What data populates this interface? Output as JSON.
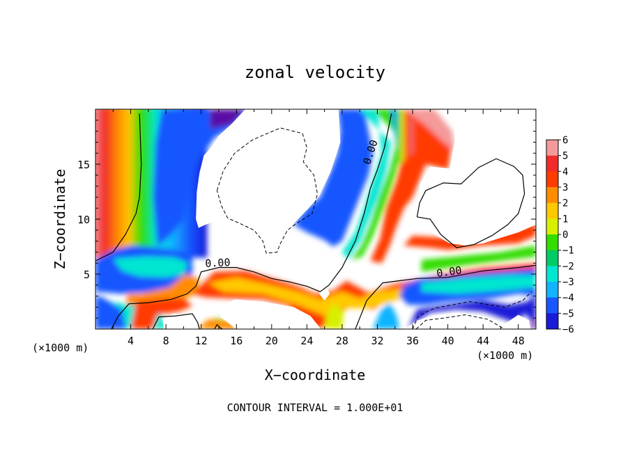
{
  "chart_data": {
    "type": "heatmap",
    "title": "zonal velocity",
    "xlabel": "X−coordinate",
    "ylabel": "Z−coordinate",
    "x_unit_left": "(×1000 m)",
    "x_unit_right": "(×1000 m)",
    "footer": "CONTOUR INTERVAL = 1.000E+01",
    "xlim": [
      0,
      50
    ],
    "ylim": [
      0,
      20
    ],
    "x_ticks": [
      4,
      8,
      12,
      16,
      20,
      24,
      28,
      32,
      36,
      40,
      44,
      48
    ],
    "y_ticks": [
      5,
      10,
      15
    ],
    "colorbar": {
      "levels": [
        6,
        5,
        4,
        3,
        2,
        1,
        0,
        -1,
        -2,
        -3,
        -4,
        -5,
        -6
      ],
      "tick_labels": [
        "6",
        "5",
        "4",
        "3",
        "2",
        "1",
        "0",
        "−1",
        "−2",
        "−3",
        "−4",
        "−5",
        "−6"
      ],
      "colors": [
        "#f49a9a",
        "#f22a2a",
        "#ff3b00",
        "#ff8c00",
        "#ffc800",
        "#d8f000",
        "#33dd00",
        "#00cc66",
        "#00e6d0",
        "#10b4ff",
        "#1856ff",
        "#1a1ad8",
        "#5a08a6"
      ]
    },
    "contour_labels": [
      {
        "text": "0.00",
        "x": 13.9,
        "y": 5.7,
        "angle": -3
      },
      {
        "text": "0.00",
        "x": 31.6,
        "y": 16.0,
        "angle": -72
      },
      {
        "text": "0.00",
        "x": 40.2,
        "y": 4.9,
        "angle": -8
      }
    ],
    "zero_contours": [
      [
        [
          0,
          6.2
        ],
        [
          2,
          7.0
        ],
        [
          3.4,
          8.6
        ],
        [
          4.6,
          10.5
        ],
        [
          5.0,
          12.0
        ],
        [
          5.2,
          15.0
        ],
        [
          5.0,
          19.6
        ]
      ],
      [
        [
          1.8,
          0
        ],
        [
          2.6,
          1.2
        ],
        [
          3.8,
          2.3
        ],
        [
          6,
          2.4
        ],
        [
          8.6,
          2.7
        ],
        [
          10.4,
          3.2
        ],
        [
          11.4,
          3.9
        ],
        [
          12,
          5.2
        ],
        [
          14,
          5.6
        ],
        [
          16,
          5.6
        ],
        [
          18,
          5.2
        ],
        [
          20,
          4.6
        ],
        [
          22,
          4.3
        ],
        [
          24,
          3.9
        ],
        [
          25.5,
          3.4
        ],
        [
          26.5,
          4.0
        ],
        [
          28,
          5.6
        ],
        [
          29.5,
          8.0
        ],
        [
          30.5,
          10.5
        ],
        [
          31.2,
          12.8
        ],
        [
          32,
          14.5
        ],
        [
          32.8,
          16.5
        ],
        [
          33.6,
          19.6
        ]
      ],
      [
        [
          29.5,
          0
        ],
        [
          30.8,
          2.6
        ],
        [
          32.6,
          4.2
        ],
        [
          34.5,
          4.4
        ],
        [
          36.5,
          4.6
        ],
        [
          40,
          4.7
        ],
        [
          44,
          5.3
        ],
        [
          48,
          5.6
        ],
        [
          50,
          5.8
        ]
      ],
      [
        [
          36.5,
          10.2
        ],
        [
          38,
          10.0
        ],
        [
          39.2,
          8.6
        ],
        [
          41,
          7.4
        ],
        [
          43,
          7.7
        ],
        [
          45,
          8.5
        ],
        [
          46.8,
          9.5
        ],
        [
          48,
          10.5
        ],
        [
          48.7,
          12.3
        ],
        [
          48.5,
          14.0
        ],
        [
          47.5,
          14.8
        ],
        [
          45.5,
          15.5
        ],
        [
          43.5,
          14.7
        ],
        [
          41.5,
          13.2
        ],
        [
          39.5,
          13.3
        ],
        [
          37.5,
          12.6
        ],
        [
          36.8,
          11.5
        ],
        [
          36.5,
          10.2
        ]
      ],
      [
        [
          13.5,
          0
        ],
        [
          13.8,
          0.4
        ],
        [
          14.2,
          0.1
        ],
        [
          14.4,
          0
        ]
      ],
      [
        [
          6.5,
          0
        ],
        [
          7.2,
          1.1
        ],
        [
          9.2,
          1.2
        ],
        [
          11,
          1.4
        ],
        [
          11.6,
          0.6
        ],
        [
          11.8,
          0
        ]
      ]
    ],
    "negative_contours": [
      [
        [
          13.8,
          12.6
        ],
        [
          14.5,
          14.4
        ],
        [
          15.8,
          16.0
        ],
        [
          17.8,
          17.2
        ],
        [
          19.5,
          17.8
        ],
        [
          21,
          18.3
        ],
        [
          23.5,
          17.8
        ],
        [
          24,
          16.5
        ],
        [
          23.6,
          15.2
        ],
        [
          24.8,
          14.0
        ],
        [
          25.2,
          12.3
        ],
        [
          24.6,
          10.5
        ],
        [
          22.8,
          9.6
        ],
        [
          21.8,
          9.0
        ],
        [
          21.0,
          7.8
        ],
        [
          20.6,
          7.0
        ],
        [
          19.4,
          6.9
        ],
        [
          19.0,
          8.0
        ],
        [
          18.0,
          9.0
        ],
        [
          16.4,
          9.6
        ],
        [
          15.0,
          10.1
        ],
        [
          14.3,
          11.2
        ],
        [
          13.8,
          12.6
        ]
      ],
      [
        [
          36.0,
          0
        ],
        [
          36.6,
          1.1
        ],
        [
          37.4,
          1.5
        ],
        [
          38.5,
          1.9
        ],
        [
          40.5,
          2.2
        ],
        [
          42.5,
          2.5
        ],
        [
          44,
          2.3
        ],
        [
          46.5,
          2.0
        ],
        [
          48.5,
          2.6
        ],
        [
          49.5,
          3.4
        ]
      ],
      [
        [
          36.4,
          0
        ],
        [
          37.5,
          0.8
        ],
        [
          39.5,
          1.0
        ],
        [
          42,
          1.3
        ],
        [
          44.5,
          0.9
        ],
        [
          46,
          0.2
        ],
        [
          46.4,
          0
        ]
      ]
    ]
  }
}
